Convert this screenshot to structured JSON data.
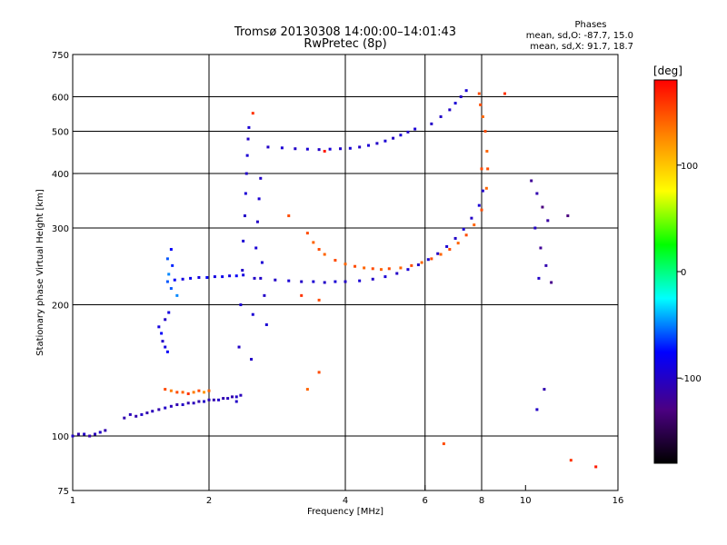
{
  "chart_data": {
    "type": "scatter",
    "title": "Tromsø 20130308 14:00:00–14:01:43",
    "subtitle": "RwPretec (8p)",
    "info": {
      "heading": "Phases",
      "line_o": "mean, sd,O: -87.7, 15.0",
      "line_x": "mean, sd,X:  91.7, 18.7"
    },
    "xlabel": "Frequency [MHz]",
    "ylabel": "Stationary phase Virtual Height [km]",
    "x_scale": "log",
    "y_scale": "log",
    "xlim": [
      1,
      16
    ],
    "ylim": [
      75,
      750
    ],
    "x_ticks": [
      {
        "value": 1,
        "label": "1"
      },
      {
        "value": 2,
        "label": "2"
      },
      {
        "value": 4,
        "label": "4"
      },
      {
        "value": 6,
        "label": "6"
      },
      {
        "value": 8,
        "label": "8"
      },
      {
        "value": 10,
        "label": "10"
      },
      {
        "value": 16,
        "label": "16"
      }
    ],
    "x_grid": [
      2,
      4,
      6,
      8
    ],
    "y_ticks": [
      {
        "value": 75,
        "label": "75"
      },
      {
        "value": 100,
        "label": "100"
      },
      {
        "value": 200,
        "label": "200"
      },
      {
        "value": 300,
        "label": "300"
      },
      {
        "value": 400,
        "label": "400"
      },
      {
        "value": 500,
        "label": "500"
      },
      {
        "value": 600,
        "label": "600"
      },
      {
        "value": 750,
        "label": "750"
      }
    ],
    "y_grid": [
      100,
      200,
      300,
      400,
      500,
      600
    ],
    "grid": true,
    "colorbar": {
      "unit": "[deg]",
      "range": [
        -180,
        180
      ],
      "ticks": [
        {
          "value": 100,
          "label": "100"
        },
        {
          "value": 0,
          "label": "0"
        },
        {
          "value": -100,
          "label": "-100"
        }
      ],
      "colors": [
        "#000000",
        "#4b0082",
        "#0000ff",
        "#00ffff",
        "#00ff00",
        "#ffff00",
        "#ff8000",
        "#ff0000"
      ]
    },
    "series": [
      {
        "points": [
          [
            1.0,
            100,
            -100
          ],
          [
            1.03,
            101,
            -110
          ],
          [
            1.06,
            101,
            -100
          ],
          [
            1.09,
            100,
            -110
          ],
          [
            1.12,
            101,
            -105
          ],
          [
            1.15,
            102,
            -100
          ],
          [
            1.18,
            103,
            -110
          ]
        ]
      },
      {
        "points": [
          [
            1.3,
            110,
            -110
          ],
          [
            1.34,
            112,
            -105
          ],
          [
            1.38,
            111,
            -110
          ],
          [
            1.42,
            112,
            -100
          ],
          [
            1.46,
            113,
            -110
          ],
          [
            1.5,
            114,
            -105
          ],
          [
            1.55,
            115,
            -110
          ],
          [
            1.6,
            116,
            -100
          ],
          [
            1.65,
            117,
            -105
          ],
          [
            1.7,
            118,
            -110
          ],
          [
            1.75,
            118,
            -100
          ],
          [
            1.8,
            119,
            -110
          ],
          [
            1.85,
            119,
            -105
          ],
          [
            1.9,
            120,
            -110
          ],
          [
            1.95,
            120,
            -100
          ],
          [
            2.0,
            121,
            -105
          ],
          [
            2.05,
            121,
            -110
          ],
          [
            2.1,
            121,
            -100
          ],
          [
            2.15,
            122,
            -110
          ],
          [
            2.2,
            122,
            -105
          ],
          [
            2.25,
            123,
            -110
          ],
          [
            2.3,
            123,
            -100
          ],
          [
            2.35,
            124,
            -105
          ]
        ]
      },
      {
        "points": [
          [
            1.6,
            128,
            150
          ],
          [
            1.65,
            127,
            130
          ],
          [
            1.7,
            126,
            150
          ],
          [
            1.75,
            126,
            140
          ],
          [
            1.8,
            125,
            160
          ],
          [
            1.85,
            126,
            130
          ],
          [
            1.9,
            127,
            150
          ],
          [
            1.95,
            126,
            120
          ],
          [
            2.0,
            127,
            140
          ]
        ]
      },
      {
        "points": [
          [
            1.55,
            178,
            -90
          ],
          [
            1.57,
            172,
            -80
          ],
          [
            1.58,
            165,
            -100
          ],
          [
            1.6,
            160,
            -90
          ],
          [
            1.62,
            156,
            -80
          ],
          [
            1.6,
            185,
            -100
          ],
          [
            1.63,
            192,
            -90
          ]
        ]
      },
      {
        "points": [
          [
            1.7,
            210,
            -50
          ],
          [
            1.65,
            218,
            -60
          ],
          [
            1.62,
            226,
            -60
          ],
          [
            1.63,
            235,
            -50
          ],
          [
            1.66,
            246,
            -70
          ],
          [
            1.62,
            255,
            -60
          ],
          [
            1.65,
            268,
            -80
          ]
        ]
      },
      {
        "points": [
          [
            1.68,
            228,
            -80
          ],
          [
            1.75,
            229,
            -90
          ],
          [
            1.82,
            230,
            -85
          ],
          [
            1.9,
            231,
            -90
          ],
          [
            1.98,
            231,
            -80
          ],
          [
            2.06,
            232,
            -90
          ],
          [
            2.14,
            232,
            -85
          ],
          [
            2.22,
            233,
            -90
          ],
          [
            2.3,
            233,
            -80
          ],
          [
            2.38,
            234,
            -90
          ]
        ]
      },
      {
        "points": [
          [
            2.3,
            120,
            -100
          ],
          [
            2.33,
            160,
            -100
          ],
          [
            2.35,
            200,
            -95
          ],
          [
            2.37,
            240,
            -100
          ],
          [
            2.38,
            280,
            -95
          ],
          [
            2.4,
            320,
            -100
          ],
          [
            2.41,
            360,
            -95
          ],
          [
            2.42,
            400,
            -100
          ],
          [
            2.43,
            440,
            -95
          ],
          [
            2.44,
            480,
            -100
          ],
          [
            2.45,
            510,
            -95
          ],
          [
            2.48,
            150,
            -100
          ],
          [
            2.5,
            190,
            -95
          ],
          [
            2.52,
            230,
            -100
          ],
          [
            2.54,
            270,
            -95
          ],
          [
            2.56,
            310,
            -100
          ],
          [
            2.58,
            350,
            -95
          ],
          [
            2.6,
            390,
            -100
          ],
          [
            2.62,
            250,
            -95
          ],
          [
            2.65,
            210,
            -100
          ],
          [
            2.68,
            180,
            -95
          ]
        ]
      },
      {
        "points": [
          [
            2.6,
            230,
            -100
          ],
          [
            2.8,
            228,
            -100
          ],
          [
            3.0,
            227,
            -95
          ],
          [
            3.2,
            226,
            -100
          ],
          [
            3.4,
            226,
            -95
          ],
          [
            3.6,
            225,
            -100
          ],
          [
            3.8,
            226,
            -95
          ],
          [
            4.0,
            226,
            -100
          ],
          [
            4.3,
            227,
            -95
          ],
          [
            4.6,
            229,
            -100
          ],
          [
            4.9,
            232,
            -95
          ],
          [
            5.2,
            236,
            -100
          ],
          [
            5.5,
            241,
            -95
          ],
          [
            5.8,
            247,
            -100
          ],
          [
            6.1,
            254,
            -95
          ],
          [
            6.4,
            262,
            -100
          ],
          [
            6.7,
            272,
            -95
          ],
          [
            7.0,
            284,
            -100
          ],
          [
            7.3,
            298,
            -95
          ],
          [
            7.6,
            316,
            -100
          ],
          [
            7.9,
            338,
            -95
          ],
          [
            8.05,
            365,
            -100
          ]
        ]
      },
      {
        "points": [
          [
            3.3,
            292,
            150
          ],
          [
            3.4,
            278,
            140
          ],
          [
            3.5,
            268,
            150
          ],
          [
            3.6,
            261,
            140
          ],
          [
            3.8,
            253,
            150
          ],
          [
            4.0,
            248,
            140
          ],
          [
            4.2,
            245,
            150
          ],
          [
            4.4,
            243,
            140
          ],
          [
            4.6,
            242,
            150
          ],
          [
            4.8,
            241,
            140
          ],
          [
            5.0,
            242,
            150
          ],
          [
            5.3,
            243,
            140
          ],
          [
            5.6,
            246,
            150
          ],
          [
            5.9,
            250,
            140
          ],
          [
            6.2,
            255,
            150
          ],
          [
            6.5,
            261,
            140
          ],
          [
            6.8,
            268,
            150
          ],
          [
            7.1,
            277,
            140
          ],
          [
            7.4,
            289,
            150
          ],
          [
            7.7,
            305,
            140
          ],
          [
            8.0,
            330,
            150
          ],
          [
            8.2,
            370,
            140
          ],
          [
            8.25,
            410,
            150
          ],
          [
            8.22,
            450,
            140
          ],
          [
            8.15,
            500,
            150
          ],
          [
            8.05,
            540,
            140
          ],
          [
            7.95,
            575,
            150
          ],
          [
            7.9,
            610,
            150
          ]
        ]
      },
      {
        "points": [
          [
            2.7,
            460,
            -100
          ],
          [
            2.9,
            458,
            -95
          ],
          [
            3.1,
            456,
            -100
          ],
          [
            3.3,
            455,
            -95
          ],
          [
            3.5,
            454,
            -100
          ],
          [
            3.7,
            455,
            -95
          ],
          [
            3.9,
            456,
            -100
          ],
          [
            4.1,
            457,
            -95
          ],
          [
            4.3,
            460,
            -100
          ],
          [
            4.5,
            464,
            -95
          ],
          [
            4.7,
            469,
            -100
          ],
          [
            4.9,
            475,
            -95
          ],
          [
            5.1,
            482,
            -100
          ],
          [
            5.3,
            490,
            -95
          ],
          [
            5.5,
            498,
            -100
          ],
          [
            5.7,
            506,
            -95
          ]
        ]
      },
      {
        "points": [
          [
            6.2,
            520,
            -100
          ],
          [
            6.5,
            540,
            -100
          ],
          [
            6.8,
            560,
            -100
          ],
          [
            7.0,
            580,
            -95
          ],
          [
            7.2,
            600,
            -100
          ],
          [
            7.4,
            620,
            -95
          ]
        ]
      },
      {
        "points": [
          [
            3.0,
            320,
            150
          ],
          [
            3.2,
            210,
            160
          ],
          [
            3.5,
            205,
            150
          ],
          [
            3.3,
            128,
            140
          ],
          [
            3.5,
            140,
            150
          ],
          [
            6.6,
            96,
            150
          ],
          [
            8.0,
            410,
            150
          ],
          [
            9.0,
            610,
            160
          ],
          [
            2.5,
            550,
            160
          ],
          [
            3.6,
            450,
            170
          ]
        ]
      },
      {
        "points": [
          [
            10.3,
            385,
            -120
          ],
          [
            10.6,
            360,
            -110
          ],
          [
            10.9,
            335,
            -130
          ],
          [
            11.2,
            312,
            -115
          ],
          [
            10.5,
            300,
            -100
          ],
          [
            10.8,
            270,
            -120
          ],
          [
            11.1,
            246,
            -110
          ],
          [
            11.4,
            225,
            -125
          ],
          [
            10.7,
            230,
            -100
          ],
          [
            11.0,
            128,
            -110
          ],
          [
            10.6,
            115,
            -100
          ],
          [
            12.4,
            320,
            -130
          ],
          [
            12.6,
            88,
            160
          ],
          [
            14.3,
            85,
            170
          ]
        ]
      }
    ]
  }
}
